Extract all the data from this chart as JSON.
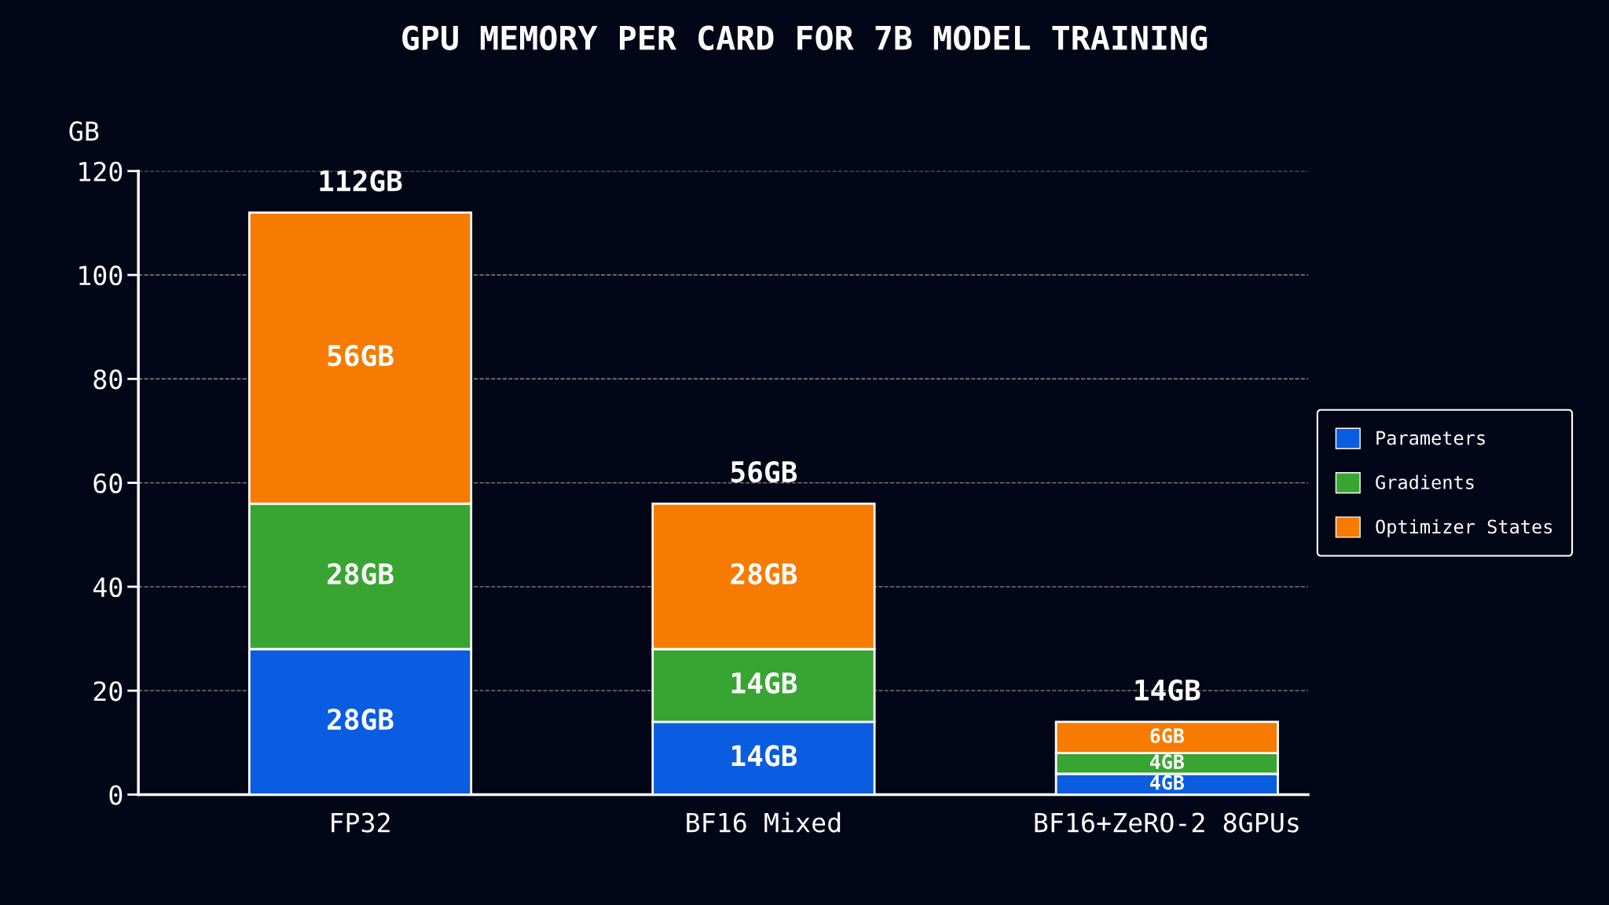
{
  "chart_data": {
    "type": "bar",
    "title": "GPU MEMORY PER CARD FOR 7B MODEL TRAINING",
    "ylabel": "GB",
    "categories": [
      "FP32",
      "BF16 Mixed",
      "BF16+ZeRO-2 8GPUs"
    ],
    "stacked": true,
    "ylim": [
      0,
      120
    ],
    "yticks": [
      0,
      20,
      40,
      60,
      80,
      100,
      120
    ],
    "grid": "y",
    "legend": "right",
    "totals": [
      "112GB",
      "56GB",
      "14GB"
    ],
    "series": [
      {
        "name": "Parameters",
        "color": "#0a5ce0",
        "values": [
          28,
          14,
          4
        ],
        "value_labels": [
          "28GB",
          "14GB",
          "4GB"
        ]
      },
      {
        "name": "Gradients",
        "color": "#38a532",
        "values": [
          28,
          14,
          4
        ],
        "value_labels": [
          "28GB",
          "14GB",
          "4GB"
        ]
      },
      {
        "name": "Optimizer States",
        "color": "#f77b00",
        "values": [
          56,
          28,
          6
        ],
        "value_labels": [
          "56GB",
          "28GB",
          "6GB"
        ]
      }
    ]
  }
}
